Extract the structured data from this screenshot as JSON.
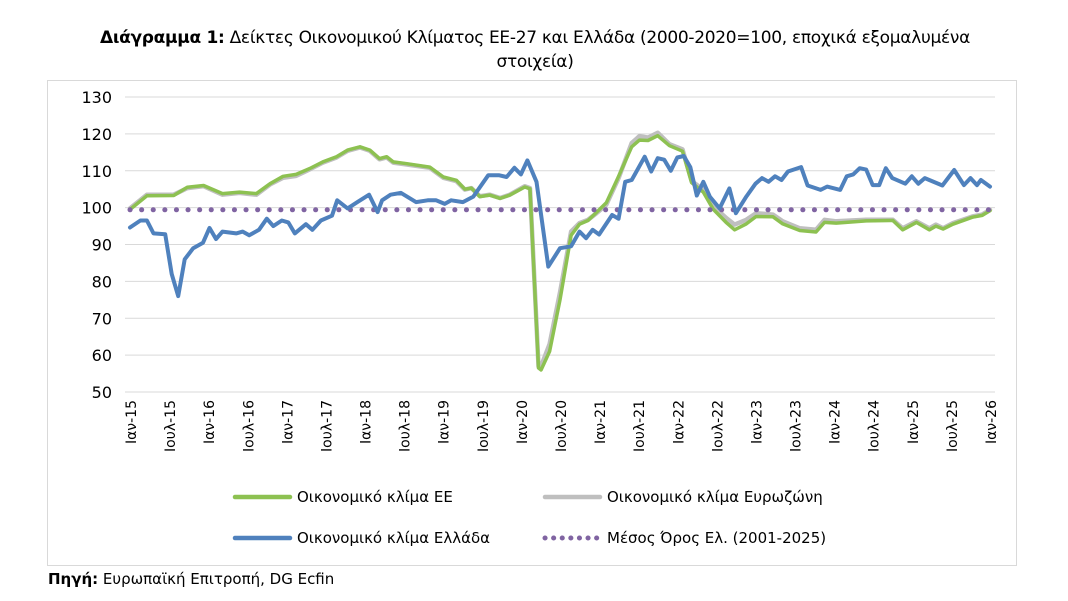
{
  "title": {
    "bold": "Διάγραμμα 1:",
    "text": " Δείκτες Οικονομικού Κλίματος ΕΕ-27 και Ελλάδα (2000-2020=100, εποχικά εξομαλυμένα στοιχεία)"
  },
  "source": {
    "bold": "Πηγή:",
    "text": " Ευρωπαϊκή Επιτροπή, DG Ecfin"
  },
  "chart_data": {
    "type": "line",
    "x_unit": "months since Ιαν-15",
    "ylim": [
      50,
      130
    ],
    "yticks": [
      50,
      60,
      70,
      80,
      90,
      100,
      110,
      120,
      130
    ],
    "grid": true,
    "legend_position": "bottom",
    "xtick_labels": [
      "Ιαν-15",
      "Ιουλ-15",
      "Ιαν-16",
      "Ιουλ-16",
      "Ιαν-17",
      "Ιουλ-17",
      "Ιαν-18",
      "Ιουλ-18",
      "Ιαν-19",
      "Ιουλ-19",
      "Ιαν-20",
      "Ιουλ-20",
      "Ιαν-21",
      "Ιουλ-21",
      "Ιαν-22",
      "Ιουλ-22",
      "Ιαν-23",
      "Ιουλ-23",
      "Ιαν-24",
      "Ιουλ-24",
      "Ιαν-25",
      "Ιουλ-25",
      "Ιαν-26"
    ],
    "series": [
      {
        "name": "Οικονομικό κλίμα ΕΕ",
        "color": "#8dc151",
        "style": "solid",
        "points": [
          [
            0,
            99.5
          ],
          [
            2.6,
            103.2
          ],
          [
            6.7,
            103.3
          ],
          [
            8.8,
            105.5
          ],
          [
            11.3,
            106
          ],
          [
            14.2,
            103.8
          ],
          [
            16.8,
            104.2
          ],
          [
            19.4,
            103.8
          ],
          [
            21.5,
            106.5
          ],
          [
            23.5,
            108.5
          ],
          [
            25.5,
            109
          ],
          [
            27.6,
            110.6
          ],
          [
            29.6,
            112.4
          ],
          [
            31.7,
            113.8
          ],
          [
            33.4,
            115.6
          ],
          [
            35.3,
            116.5
          ],
          [
            36.8,
            115.6
          ],
          [
            38.3,
            113.3
          ],
          [
            39.4,
            113.8
          ],
          [
            40.4,
            112.4
          ],
          [
            42.5,
            111.9
          ],
          [
            46,
            111
          ],
          [
            48.1,
            108.3
          ],
          [
            50.1,
            107.4
          ],
          [
            51.4,
            105
          ],
          [
            52.4,
            105.3
          ],
          [
            53.7,
            103
          ],
          [
            55.2,
            103.4
          ],
          [
            56.8,
            102.5
          ],
          [
            58.3,
            103.4
          ],
          [
            60.6,
            105.6
          ],
          [
            61.4,
            105.1
          ],
          [
            62.7,
            56.5
          ],
          [
            63.1,
            56
          ],
          [
            64.4,
            61
          ],
          [
            66,
            75
          ],
          [
            67.7,
            92.5
          ],
          [
            69,
            95.5
          ],
          [
            70.3,
            96.5
          ],
          [
            71.6,
            98.7
          ],
          [
            73.1,
            101.3
          ],
          [
            75,
            108.5
          ],
          [
            77,
            116.5
          ],
          [
            78.2,
            118.3
          ],
          [
            79.5,
            118.2
          ],
          [
            81,
            119.5
          ],
          [
            82.8,
            116.8
          ],
          [
            84.8,
            115.3
          ],
          [
            86.2,
            106.8
          ],
          [
            88,
            104.2
          ],
          [
            89.5,
            99.6
          ],
          [
            91.5,
            96
          ],
          [
            92.8,
            94
          ],
          [
            94.6,
            95.6
          ],
          [
            96.1,
            97.6
          ],
          [
            98.7,
            97.5
          ],
          [
            100.2,
            95.6
          ],
          [
            102.8,
            93.8
          ],
          [
            105.3,
            93.4
          ],
          [
            106.6,
            96
          ],
          [
            108.4,
            95.8
          ],
          [
            113,
            96.4
          ],
          [
            117.1,
            96.5
          ],
          [
            118.6,
            94
          ],
          [
            120.7,
            96
          ],
          [
            122.7,
            94
          ],
          [
            123.7,
            95
          ],
          [
            124.8,
            94.2
          ],
          [
            126.3,
            95.5
          ],
          [
            129.3,
            97.4
          ],
          [
            130.8,
            97.9
          ],
          [
            132,
            99.2
          ]
        ]
      },
      {
        "name": "Οικονομικό κλίμα Ευρωζώνη",
        "color": "#bfbfbf",
        "style": "solid",
        "points": [
          [
            0,
            99.8
          ],
          [
            2.6,
            103.5
          ],
          [
            6.7,
            103.5
          ],
          [
            8.8,
            105.3
          ],
          [
            11.3,
            105.8
          ],
          [
            14.2,
            103.5
          ],
          [
            16.8,
            104
          ],
          [
            19.4,
            103.5
          ],
          [
            21.5,
            106.3
          ],
          [
            23.5,
            108.1
          ],
          [
            25.5,
            108.6
          ],
          [
            27.6,
            110.4
          ],
          [
            29.6,
            112.2
          ],
          [
            31.7,
            113.6
          ],
          [
            33.4,
            115.4
          ],
          [
            35.3,
            116.3
          ],
          [
            36.8,
            115.4
          ],
          [
            38.3,
            113.1
          ],
          [
            39.4,
            113.6
          ],
          [
            40.4,
            112.2
          ],
          [
            42.5,
            111.7
          ],
          [
            46,
            110.8
          ],
          [
            48.1,
            108.1
          ],
          [
            50.1,
            107.2
          ],
          [
            51.4,
            104.9
          ],
          [
            52.4,
            105.3
          ],
          [
            53.7,
            103.1
          ],
          [
            55.2,
            103.5
          ],
          [
            56.8,
            102.6
          ],
          [
            58.3,
            103.5
          ],
          [
            60.6,
            105.8
          ],
          [
            61.4,
            105.3
          ],
          [
            62.7,
            57
          ],
          [
            63.1,
            57
          ],
          [
            64.4,
            63
          ],
          [
            66,
            77
          ],
          [
            67.7,
            93.5
          ],
          [
            69,
            95.8
          ],
          [
            70.3,
            96.7
          ],
          [
            71.6,
            98.5
          ],
          [
            73.1,
            100.8
          ],
          [
            75,
            108
          ],
          [
            77,
            117.5
          ],
          [
            78.2,
            119.4
          ],
          [
            79.5,
            119
          ],
          [
            81,
            120.3
          ],
          [
            82.8,
            117.2
          ],
          [
            84.8,
            115.8
          ],
          [
            86.2,
            107.2
          ],
          [
            88,
            104.9
          ],
          [
            89.5,
            100.4
          ],
          [
            91.5,
            97.2
          ],
          [
            92.8,
            95.4
          ],
          [
            94.6,
            96.7
          ],
          [
            96.1,
            98.5
          ],
          [
            98.7,
            98.1
          ],
          [
            100.2,
            96.3
          ],
          [
            102.8,
            94.4
          ],
          [
            105.3,
            94
          ],
          [
            106.6,
            96.7
          ],
          [
            108.4,
            96.3
          ],
          [
            113,
            96.7
          ],
          [
            117.1,
            96.7
          ],
          [
            118.6,
            94.4
          ],
          [
            120.7,
            96.3
          ],
          [
            122.7,
            94.4
          ],
          [
            123.7,
            95.4
          ],
          [
            124.8,
            94.4
          ],
          [
            126.3,
            95.8
          ],
          [
            129.3,
            97.6
          ],
          [
            130.8,
            98.1
          ],
          [
            132,
            99.4
          ]
        ]
      },
      {
        "name": "Οικονομικό κλίμα Ελλάδα",
        "color": "#4f81bd",
        "style": "solid",
        "points": [
          [
            0,
            94.6
          ],
          [
            1.6,
            96.5
          ],
          [
            2.6,
            96.5
          ],
          [
            3.6,
            93
          ],
          [
            5.4,
            92.8
          ],
          [
            6.4,
            82
          ],
          [
            7.4,
            76
          ],
          [
            8.4,
            86
          ],
          [
            9.7,
            89
          ],
          [
            11.2,
            90.5
          ],
          [
            12.2,
            94.5
          ],
          [
            13.2,
            91.5
          ],
          [
            14.2,
            93.5
          ],
          [
            16.3,
            93
          ],
          [
            17.3,
            93.5
          ],
          [
            18.3,
            92.5
          ],
          [
            19.8,
            94
          ],
          [
            21,
            97
          ],
          [
            22,
            95
          ],
          [
            23.3,
            96.5
          ],
          [
            24.3,
            96
          ],
          [
            25.3,
            93
          ],
          [
            27,
            95.5
          ],
          [
            28,
            94
          ],
          [
            29.3,
            96.5
          ],
          [
            31,
            97.8
          ],
          [
            31.8,
            102
          ],
          [
            33.4,
            99.8
          ],
          [
            34.9,
            101.5
          ],
          [
            36.7,
            103.5
          ],
          [
            38,
            98.8
          ],
          [
            38.7,
            102
          ],
          [
            40,
            103.5
          ],
          [
            41.6,
            104
          ],
          [
            43.9,
            101.5
          ],
          [
            45.7,
            102
          ],
          [
            47,
            102
          ],
          [
            48.3,
            101
          ],
          [
            49.3,
            102
          ],
          [
            51.1,
            101.5
          ],
          [
            52.7,
            103
          ],
          [
            55,
            108.8
          ],
          [
            56.6,
            108.8
          ],
          [
            57.8,
            108.3
          ],
          [
            59,
            110.8
          ],
          [
            60,
            109
          ],
          [
            61,
            112.8
          ],
          [
            62.4,
            107
          ],
          [
            64.2,
            84
          ],
          [
            66,
            89
          ],
          [
            67.7,
            89.5
          ],
          [
            69,
            93.5
          ],
          [
            70,
            91.7
          ],
          [
            71,
            94
          ],
          [
            72,
            92.7
          ],
          [
            74,
            98
          ],
          [
            75,
            97
          ],
          [
            76,
            107
          ],
          [
            77,
            107.5
          ],
          [
            79,
            113.8
          ],
          [
            80,
            109.8
          ],
          [
            81,
            113.4
          ],
          [
            82,
            113
          ],
          [
            83,
            110
          ],
          [
            84,
            113.6
          ],
          [
            85,
            114
          ],
          [
            86,
            111
          ],
          [
            87,
            103.3
          ],
          [
            88,
            107
          ],
          [
            89,
            103
          ],
          [
            90.5,
            99.8
          ],
          [
            92,
            105.2
          ],
          [
            93,
            98.5
          ],
          [
            94.6,
            103
          ],
          [
            96,
            106.5
          ],
          [
            97,
            108
          ],
          [
            98,
            107
          ],
          [
            99,
            108.5
          ],
          [
            100,
            107.5
          ],
          [
            101,
            109.8
          ],
          [
            103,
            111
          ],
          [
            104,
            106
          ],
          [
            106,
            104.8
          ],
          [
            107,
            105.7
          ],
          [
            109,
            104.8
          ],
          [
            110,
            108.5
          ],
          [
            111,
            109
          ],
          [
            112,
            110.7
          ],
          [
            113,
            110.3
          ],
          [
            114,
            106.1
          ],
          [
            115,
            106.1
          ],
          [
            116,
            110.7
          ],
          [
            117,
            108
          ],
          [
            119,
            106.5
          ],
          [
            120,
            108.5
          ],
          [
            121,
            106.5
          ],
          [
            122,
            108
          ],
          [
            124.7,
            106
          ],
          [
            126.5,
            110.2
          ],
          [
            128,
            106.1
          ],
          [
            129,
            108
          ],
          [
            130,
            106.1
          ],
          [
            130.6,
            107.5
          ],
          [
            132,
            105.7
          ]
        ]
      },
      {
        "name": "Μέσος Όρος Ελ. (2001-2025)",
        "color": "#8064a2",
        "style": "dotted",
        "points": [
          [
            0,
            99.4
          ],
          [
            132,
            99.4
          ]
        ]
      }
    ]
  }
}
